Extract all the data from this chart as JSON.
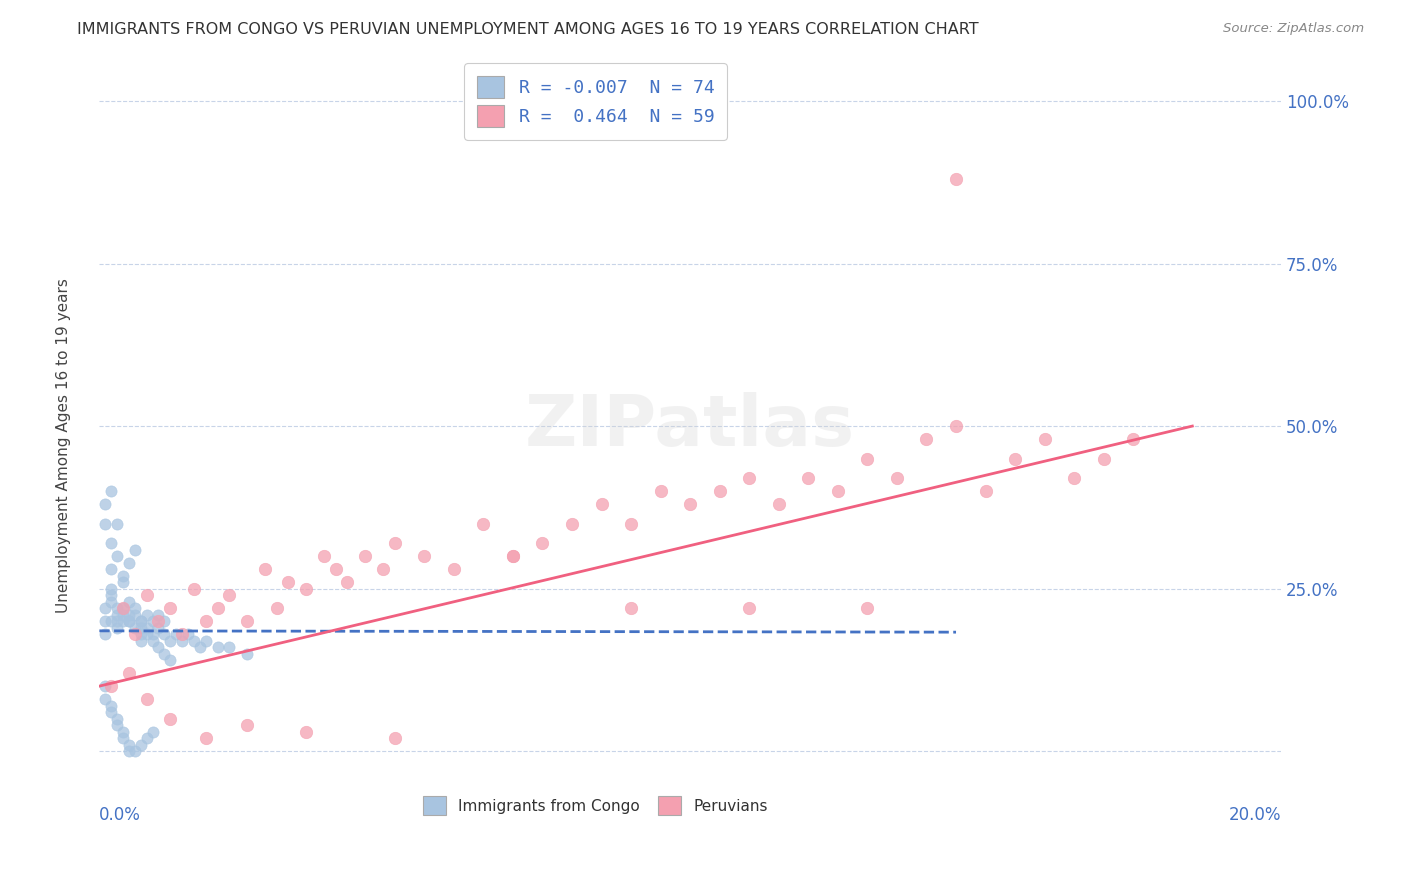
{
  "title": "IMMIGRANTS FROM CONGO VS PERUVIAN UNEMPLOYMENT AMONG AGES 16 TO 19 YEARS CORRELATION CHART",
  "source": "Source: ZipAtlas.com",
  "ylabel": "Unemployment Among Ages 16 to 19 years",
  "legend1_label": "R = -0.007  N = 74",
  "legend2_label": "R =  0.464  N = 59",
  "congo_color": "#a8c4e0",
  "peruvian_color": "#f4a0b0",
  "congo_line_color": "#4472c4",
  "peruvian_line_color": "#f06080",
  "background_color": "#ffffff",
  "grid_color": "#c8d4e8",
  "xlim": [
    0.0,
    0.2
  ],
  "ylim": [
    -0.05,
    1.05
  ],
  "congo_x": [
    0.001,
    0.001,
    0.001,
    0.002,
    0.002,
    0.002,
    0.002,
    0.003,
    0.003,
    0.003,
    0.003,
    0.004,
    0.004,
    0.004,
    0.005,
    0.005,
    0.005,
    0.006,
    0.006,
    0.007,
    0.007,
    0.007,
    0.008,
    0.008,
    0.009,
    0.009,
    0.01,
    0.01,
    0.011,
    0.011,
    0.012,
    0.013,
    0.014,
    0.015,
    0.016,
    0.017,
    0.018,
    0.02,
    0.022,
    0.025,
    0.001,
    0.001,
    0.002,
    0.002,
    0.002,
    0.003,
    0.003,
    0.004,
    0.004,
    0.005,
    0.005,
    0.006,
    0.006,
    0.007,
    0.007,
    0.008,
    0.009,
    0.01,
    0.011,
    0.012,
    0.001,
    0.001,
    0.002,
    0.002,
    0.003,
    0.003,
    0.004,
    0.004,
    0.005,
    0.005,
    0.006,
    0.007,
    0.008,
    0.009
  ],
  "congo_y": [
    0.2,
    0.22,
    0.18,
    0.24,
    0.25,
    0.2,
    0.23,
    0.21,
    0.19,
    0.22,
    0.2,
    0.21,
    0.2,
    0.22,
    0.2,
    0.21,
    0.2,
    0.19,
    0.21,
    0.2,
    0.18,
    0.17,
    0.19,
    0.21,
    0.18,
    0.2,
    0.19,
    0.21,
    0.18,
    0.2,
    0.17,
    0.18,
    0.17,
    0.18,
    0.17,
    0.16,
    0.17,
    0.16,
    0.16,
    0.15,
    0.38,
    0.35,
    0.32,
    0.4,
    0.28,
    0.35,
    0.3,
    0.27,
    0.26,
    0.29,
    0.23,
    0.22,
    0.31,
    0.2,
    0.19,
    0.18,
    0.17,
    0.16,
    0.15,
    0.14,
    0.1,
    0.08,
    0.07,
    0.06,
    0.05,
    0.04,
    0.03,
    0.02,
    0.01,
    0.0,
    0.0,
    0.01,
    0.02,
    0.03
  ],
  "peruvian_x": [
    0.004,
    0.006,
    0.008,
    0.01,
    0.012,
    0.014,
    0.016,
    0.018,
    0.02,
    0.022,
    0.025,
    0.028,
    0.03,
    0.032,
    0.035,
    0.038,
    0.04,
    0.042,
    0.045,
    0.048,
    0.05,
    0.055,
    0.06,
    0.065,
    0.07,
    0.075,
    0.08,
    0.085,
    0.09,
    0.095,
    0.1,
    0.105,
    0.11,
    0.115,
    0.12,
    0.125,
    0.13,
    0.135,
    0.14,
    0.145,
    0.15,
    0.155,
    0.16,
    0.165,
    0.17,
    0.175,
    0.002,
    0.005,
    0.008,
    0.012,
    0.018,
    0.025,
    0.035,
    0.05,
    0.07,
    0.09,
    0.11,
    0.13,
    0.145
  ],
  "peruvian_y": [
    0.22,
    0.18,
    0.24,
    0.2,
    0.22,
    0.18,
    0.25,
    0.2,
    0.22,
    0.24,
    0.2,
    0.28,
    0.22,
    0.26,
    0.25,
    0.3,
    0.28,
    0.26,
    0.3,
    0.28,
    0.32,
    0.3,
    0.28,
    0.35,
    0.3,
    0.32,
    0.35,
    0.38,
    0.35,
    0.4,
    0.38,
    0.4,
    0.42,
    0.38,
    0.42,
    0.4,
    0.45,
    0.42,
    0.48,
    0.88,
    0.4,
    0.45,
    0.48,
    0.42,
    0.45,
    0.48,
    0.1,
    0.12,
    0.08,
    0.05,
    0.02,
    0.04,
    0.03,
    0.02,
    0.3,
    0.22,
    0.22,
    0.22,
    0.5
  ],
  "congo_trend_x": [
    0.0,
    0.145
  ],
  "congo_trend_y": [
    0.185,
    0.183
  ],
  "peruvian_trend_x": [
    0.0,
    0.185
  ],
  "peruvian_trend_y": [
    0.1,
    0.5
  ]
}
